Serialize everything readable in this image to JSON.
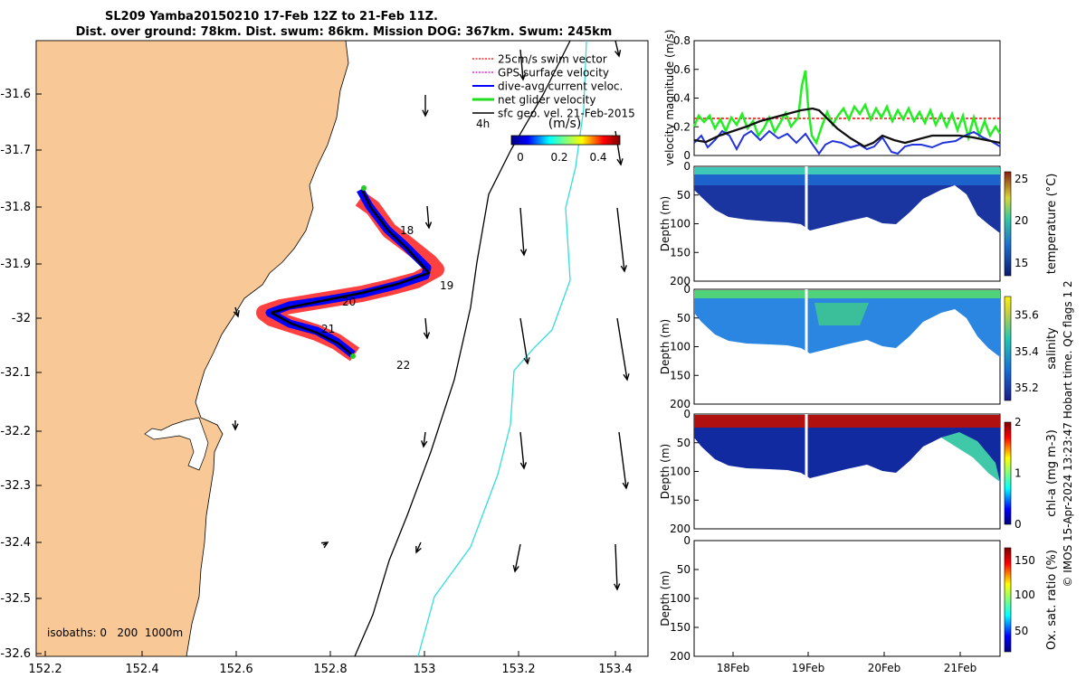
{
  "title": {
    "line1": "SL209 Yamba20150210 17-Feb 12Z to 21-Feb 11Z.",
    "line2": "Dist. over ground: 78km. Dist. swum: 86km. Mission DOG: 367km. Swum: 245km"
  },
  "map": {
    "x_ticks": [
      "152.2",
      "152.4",
      "152.6",
      "152.8",
      "153",
      "153.2",
      "153.4"
    ],
    "y_ticks": [
      "-31.6",
      "-31.7",
      "-31.8",
      "-31.9",
      "-32",
      "-32.1",
      "-32.2",
      "-32.3",
      "-32.4",
      "-32.5",
      "-32.6"
    ],
    "legend": {
      "items": [
        "25cm/s swim vector",
        "GPS surface velocity",
        "dive-avg current veloc.",
        "net glider velocity",
        "sfc geo. vel. 21-Feb-2015"
      ],
      "interval": "4h",
      "colorbar_unit": "(m/s)",
      "colorbar_ticks": [
        "0",
        "0.2",
        "0.4"
      ]
    },
    "day_labels": [
      "18",
      "19",
      "20",
      "21",
      "22"
    ],
    "isobaths_label": "isobaths: 0   200  1000m",
    "colors": {
      "land": "#f8c896",
      "track_red": "#ff0000",
      "track_blue": "#0000ff",
      "isobath_200": "#000000",
      "isobath_1000": "#33dddd"
    }
  },
  "velocity_panel": {
    "ylabel": "velocity magnitude (m/s)",
    "y_ticks": [
      "0",
      "0.2",
      "0.4",
      "0.6",
      "0.8"
    ]
  },
  "depth_panels": [
    {
      "name": "temperature",
      "ylabel": "Depth (m)",
      "y_ticks": [
        "0",
        "50",
        "100",
        "150",
        "200"
      ],
      "cbar_label": "temperature (°C)",
      "cbar_ticks": [
        "15",
        "20",
        "25"
      ]
    },
    {
      "name": "salinity",
      "ylabel": "Depth (m)",
      "y_ticks": [
        "0",
        "50",
        "100",
        "150",
        "200"
      ],
      "cbar_label": "salinity",
      "cbar_ticks": [
        "35.2",
        "35.4",
        "35.6"
      ]
    },
    {
      "name": "chl",
      "ylabel": "Depth (m)",
      "y_ticks": [
        "0",
        "50",
        "100",
        "150",
        "200"
      ],
      "cbar_label": "chl-a (mg m-3)",
      "cbar_ticks": [
        "0",
        "1",
        "2"
      ]
    },
    {
      "name": "oxygen",
      "ylabel": "Depth (m)",
      "y_ticks": [
        "0",
        "50",
        "100",
        "150",
        "200"
      ],
      "cbar_label": "Ox. sat. ratio (%)",
      "cbar_ticks": [
        "50",
        "100",
        "150"
      ]
    }
  ],
  "time_ticks": [
    "18Feb",
    "19Feb",
    "20Feb",
    "21Feb"
  ],
  "footer": "© IMOS 15-Apr-2024 13:23:47 Hobart time. QC flags 1  2"
}
